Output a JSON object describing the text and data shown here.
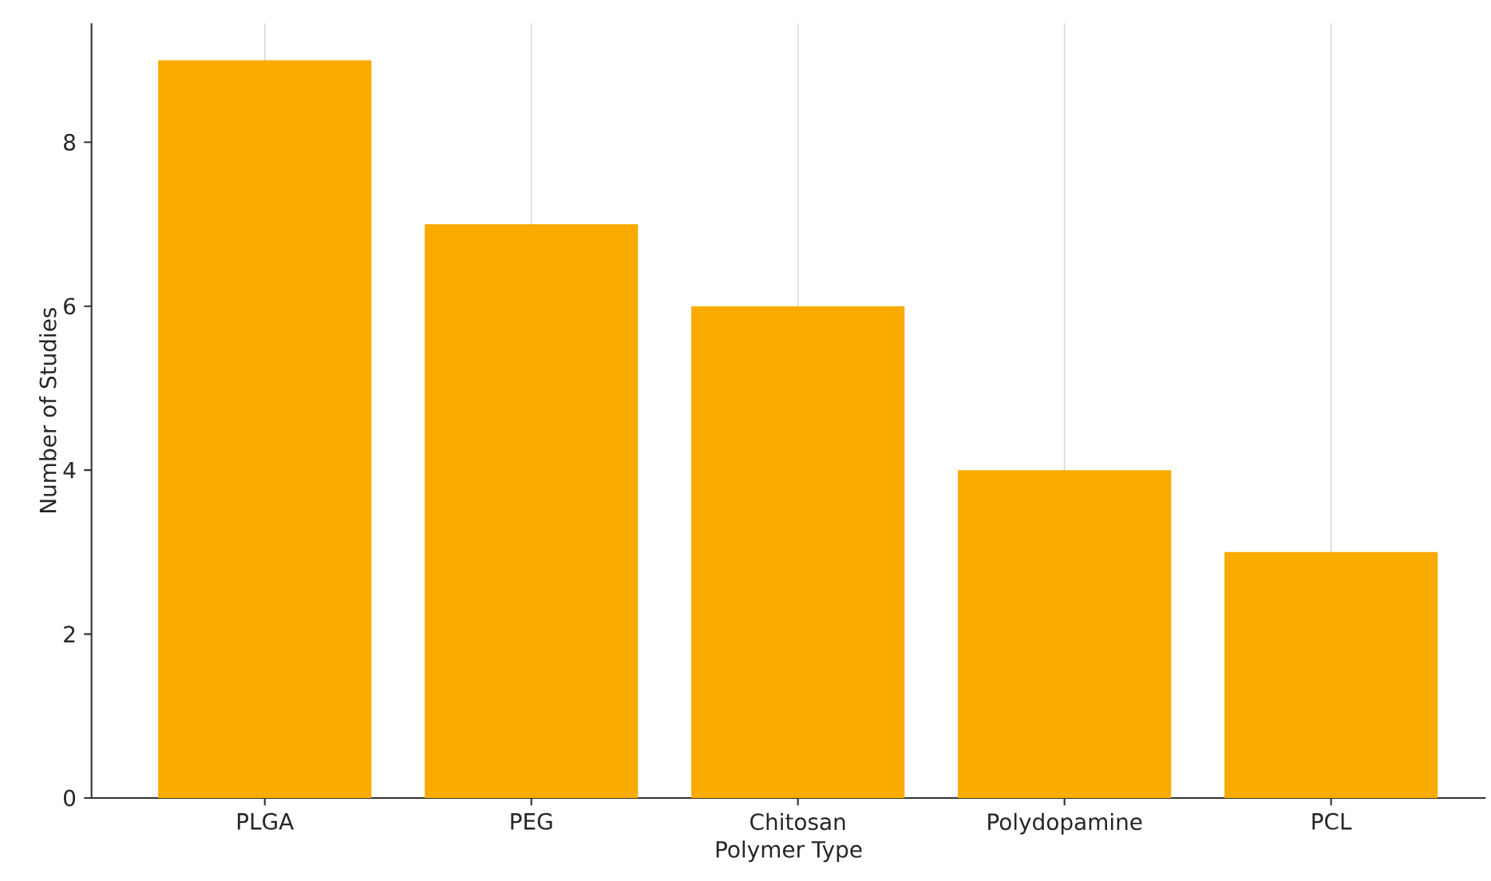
{
  "chart_data": {
    "type": "bar",
    "xlabel": "Polymer Type",
    "ylabel": "Number of Studies",
    "categories": [
      "PLGA",
      "PEG",
      "Chitosan",
      "Polydopamine",
      "PCL"
    ],
    "values": [
      9,
      7,
      6,
      4,
      3
    ],
    "color": "#f9ab00",
    "ylim": [
      0,
      9.45
    ],
    "yticks": [
      0,
      2,
      4,
      6,
      8
    ],
    "grid": "x"
  }
}
